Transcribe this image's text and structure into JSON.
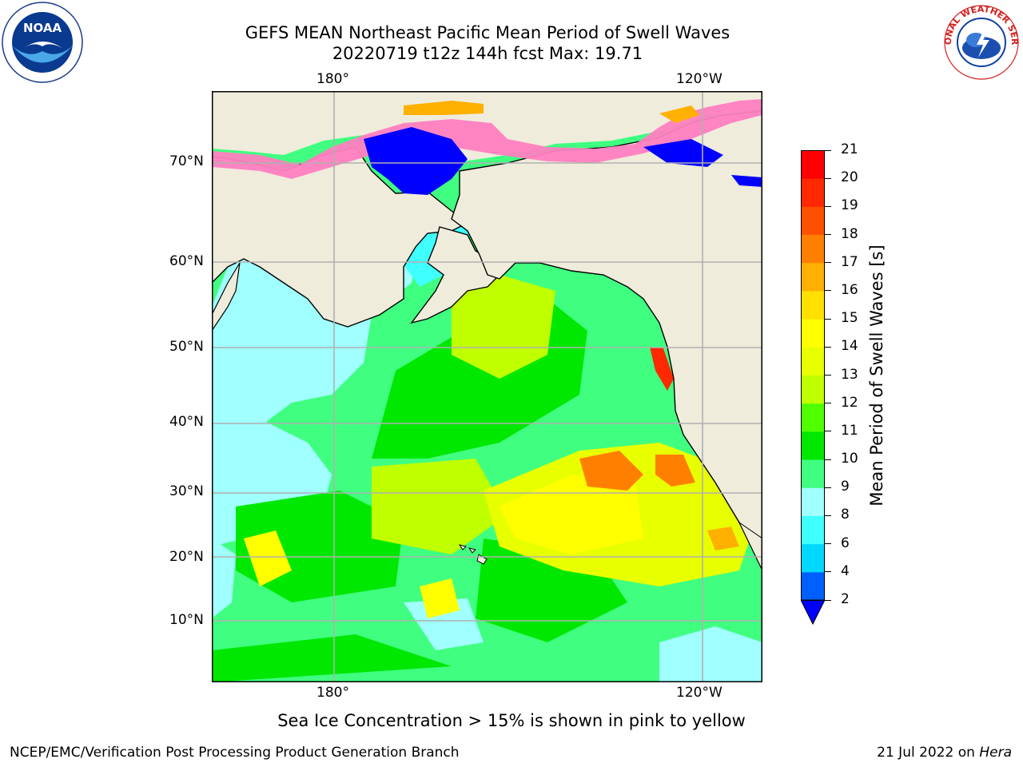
{
  "header": {
    "title_line1": "GEFS MEAN Northeast Pacific Mean Period of Swell Waves",
    "title_line2": "20220719 t12z 144h fcst   Max: 19.71"
  },
  "logos": {
    "left": "NOAA",
    "right": "NATIONAL WEATHER SERVICE"
  },
  "map": {
    "top_lon_labels": [
      "180°",
      "120°W"
    ],
    "bottom_lon_labels": [
      "180°",
      "120°W"
    ],
    "lat_labels": [
      "70°N",
      "60°N",
      "50°N",
      "40°N",
      "30°N",
      "20°N",
      "10°N"
    ],
    "gridlines": true,
    "land_color": "#efecdc",
    "field": "Mean period of swell waves (s), with sea ice concentration > 15% overlay"
  },
  "colorbar": {
    "label": "Mean Period of Swell Waves [s]",
    "ticks": [
      "2",
      "4",
      "6",
      "8",
      "9",
      "10",
      "11",
      "12",
      "13",
      "14",
      "15",
      "16",
      "17",
      "18",
      "19",
      "20",
      "21"
    ],
    "colors": [
      "#0060ff",
      "#00d8ff",
      "#40ffff",
      "#a0ffff",
      "#40ff80",
      "#00e800",
      "#50ff00",
      "#c0ff00",
      "#e8ff00",
      "#ffff00",
      "#ffe000",
      "#ffb000",
      "#ff8000",
      "#ff5000",
      "#ff2800",
      "#ff0000"
    ],
    "under_color": "#0000ff",
    "extend": "min"
  },
  "caption": "Sea Ice Concentration > 15% is shown in pink to yellow",
  "footer": {
    "left": "NCEP/EMC/Verification Post Processing Product Generation Branch",
    "date": "21 Jul 2022 on",
    "host": "Hera"
  }
}
